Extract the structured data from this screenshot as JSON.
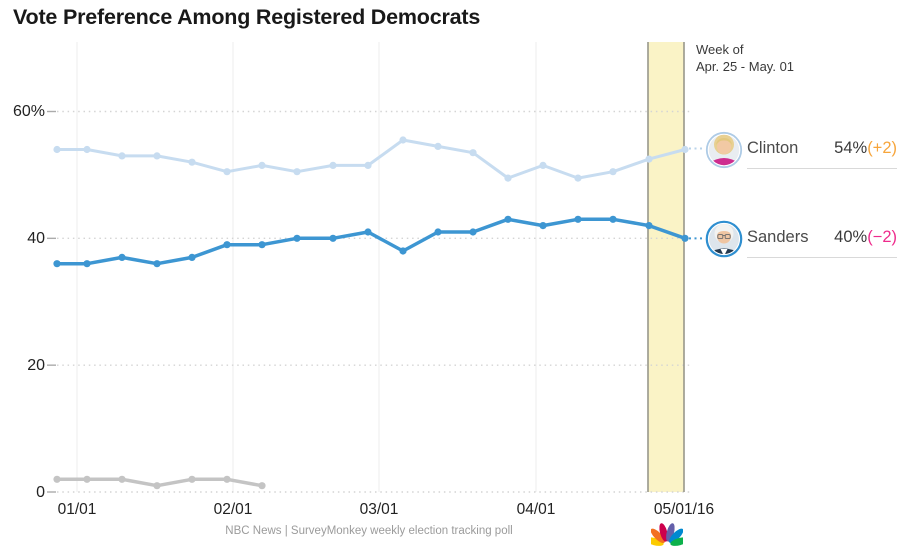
{
  "title": "Vote Preference Among Registered Democrats",
  "annotation": {
    "line1": "Week of",
    "line2": "Apr. 25 - May. 01"
  },
  "legend": {
    "clinton": {
      "name": "Clinton",
      "value": "54%",
      "change": "(+2)",
      "change_color": "#F7A53B"
    },
    "sanders": {
      "name": "Sanders",
      "value": "40%",
      "change": "(−2)",
      "change_color": "#EE2B8C"
    }
  },
  "footer": {
    "source": "NBC News | SurveyMonkey weekly election tracking poll"
  },
  "chart_data": {
    "type": "line",
    "x_weekly": [
      "12/27",
      "01/03",
      "01/10",
      "01/17",
      "01/24",
      "01/31",
      "02/07",
      "02/14",
      "02/21",
      "02/28",
      "03/06",
      "03/13",
      "03/20",
      "03/27",
      "04/03",
      "04/10",
      "04/17",
      "04/24",
      "05/01"
    ],
    "x_tick_labels": [
      "01/01",
      "02/01",
      "03/01",
      "04/01",
      "05/01/16"
    ],
    "y_tick_labels": [
      "60%",
      "40",
      "20",
      "0"
    ],
    "y_ticks": [
      60,
      40,
      20,
      0
    ],
    "ylim": [
      0,
      63
    ],
    "grid": {
      "horizontal": "dotted",
      "vertical": "monthly solid"
    },
    "legend_position": "right of plot, inline end labels with photos",
    "highlight_band": {
      "label": "Week of Apr. 25 - May. 01",
      "covers": "final week (Apr 25 - May 01)",
      "fill": "#FAF3C6",
      "border": "#98978B"
    },
    "series": [
      {
        "name": "Clinton",
        "color": "#C7DCF0",
        "values": [
          54,
          54,
          53,
          53,
          52,
          50.5,
          51.5,
          50.5,
          51.5,
          51.5,
          55.5,
          54.5,
          53.5,
          49.5,
          51.5,
          49.5,
          50.5,
          52.5,
          54
        ],
        "end_label": "54% (+2)"
      },
      {
        "name": "Sanders",
        "color": "#3D96D2",
        "values": [
          36,
          36,
          37,
          36,
          37,
          39,
          39,
          40,
          40,
          41,
          38,
          41,
          41,
          43,
          42,
          43,
          43,
          42,
          40
        ],
        "end_label": "40% (−2)"
      },
      {
        "name": "",
        "color": "#C4C4C4",
        "values": [
          2,
          2,
          2,
          1,
          2,
          2,
          1
        ],
        "note": "unlabeled gray series, ends early February"
      }
    ]
  },
  "logo": {
    "name": "NBC peacock",
    "feather_colors": [
      "#FCCB00",
      "#F37021",
      "#CC004C",
      "#6460AA",
      "#0089D0",
      "#0DB14B"
    ]
  }
}
